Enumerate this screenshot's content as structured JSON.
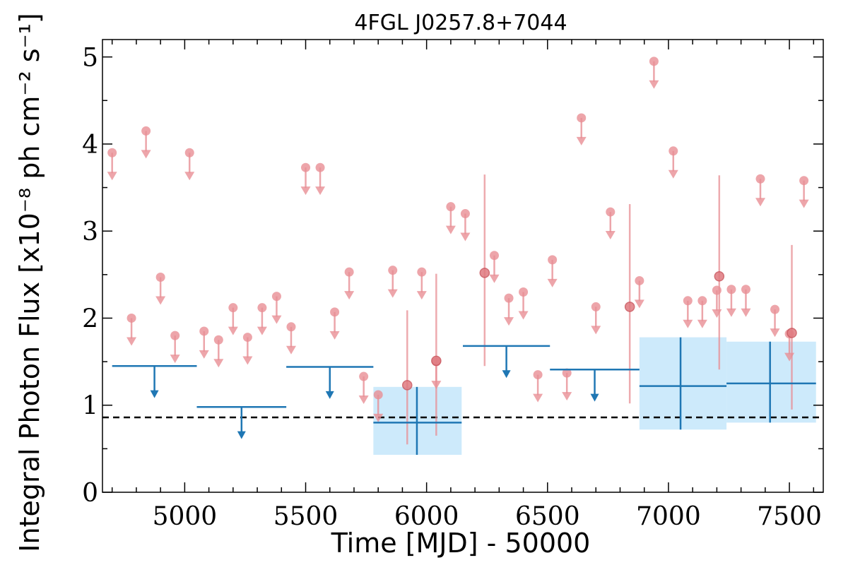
{
  "chart_data": {
    "type": "scatter",
    "title": "4FGL J0257.8+7044",
    "xlabel": "Time [MJD] - 50000",
    "ylabel": "Integral Photon Flux [x10⁻⁸ ph cm⁻² s⁻¹]",
    "xlim": [
      4660,
      7640
    ],
    "ylim": [
      0,
      5.2
    ],
    "xticks": [
      5000,
      5500,
      6000,
      6500,
      7000,
      7500
    ],
    "xtick_labels": [
      "5000",
      "5500",
      "6000",
      "6500",
      "7000",
      "7500"
    ],
    "yticks": [
      0,
      1,
      2,
      3,
      4,
      5
    ],
    "ytick_labels": [
      "0",
      "1",
      "2",
      "3",
      "4",
      "5"
    ],
    "reference_line": {
      "y": 0.86,
      "style": "dashed",
      "color": "#000000"
    },
    "colors": {
      "monthly": "#e88f95",
      "yearly": "#1f77b4",
      "yearly_band": "#cdeafb"
    },
    "series": [
      {
        "kind": "monthly_upper_limits",
        "x": [
          4700,
          4780,
          4840,
          4900,
          4960,
          5020,
          5080,
          5140,
          5200,
          5260,
          5320,
          5380,
          5440,
          5500,
          5560,
          5620,
          5680,
          5740,
          5800,
          5860,
          5980,
          6040,
          6100,
          6160,
          6280,
          6340,
          6400,
          6460,
          6520,
          6580,
          6640,
          6700,
          6760,
          6880,
          6940,
          7020,
          7080,
          7140,
          7200,
          7260,
          7320,
          7380,
          7440,
          7500,
          7560
        ],
        "y": [
          3.9,
          2.0,
          4.15,
          2.47,
          1.8,
          3.9,
          1.85,
          1.75,
          2.12,
          1.78,
          2.12,
          2.25,
          1.9,
          3.73,
          3.73,
          2.07,
          2.53,
          1.33,
          1.12,
          2.55,
          2.53,
          1.5,
          3.28,
          3.2,
          2.72,
          2.23,
          2.3,
          1.35,
          2.67,
          1.37,
          4.3,
          2.13,
          3.22,
          2.43,
          4.95,
          3.92,
          2.2,
          2.2,
          2.32,
          2.33,
          2.33,
          3.6,
          2.1,
          1.82,
          3.58
        ]
      },
      {
        "kind": "monthly_detections",
        "x": [
          5920,
          6040,
          6240,
          6840,
          7210,
          7510
        ],
        "y": [
          1.23,
          1.51,
          2.52,
          2.13,
          2.48,
          1.83
        ],
        "yerr_low": [
          0.68,
          0.86,
          1.07,
          1.11,
          1.07,
          0.88
        ],
        "yerr_high": [
          0.86,
          1.0,
          1.13,
          1.18,
          1.16,
          1.01
        ]
      },
      {
        "kind": "yearly_upper_limits",
        "x_start": [
          4700,
          5050,
          5420,
          5780,
          6150,
          6510
        ],
        "x_end": [
          5050,
          5420,
          5780,
          6150,
          6510,
          6880
        ],
        "x": [
          4875,
          5235,
          5600,
          5965,
          6330,
          6695
        ],
        "y": [
          1.45,
          0.98,
          1.44,
          null,
          1.68,
          1.41
        ]
      },
      {
        "kind": "yearly_detections",
        "x": [
          5960,
          7050,
          7420
        ],
        "x_start": [
          5780,
          6880,
          7240
        ],
        "x_end": [
          6145,
          7240,
          7610
        ],
        "y": [
          0.8,
          1.22,
          1.25
        ],
        "y_low": [
          0.43,
          0.72,
          0.8
        ],
        "y_high": [
          1.21,
          1.78,
          1.73
        ]
      }
    ]
  }
}
